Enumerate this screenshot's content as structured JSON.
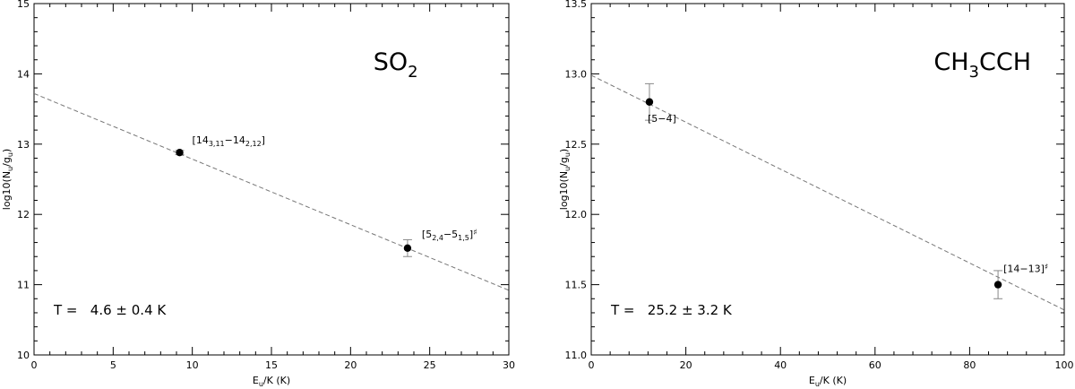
{
  "chart_data": [
    {
      "type": "scatter",
      "species_main": "SO",
      "species_sub": "2",
      "species_tail": "",
      "xlabel_main": "E",
      "xlabel_sub": "u",
      "xlabel_tail": "/K (K)",
      "ylabel_main": "log10(N",
      "ylabel_sub1": "u",
      "ylabel_mid": "/g",
      "ylabel_sub2": "u",
      "ylabel_tail": ")",
      "xlim": [
        0,
        30
      ],
      "ylim": [
        10,
        15
      ],
      "xticks": [
        "0",
        "5",
        "10",
        "15",
        "20",
        "25",
        "30"
      ],
      "yticks": [
        "10",
        "11",
        "12",
        "13",
        "14",
        "15"
      ],
      "fit_line": {
        "x": [
          0,
          30
        ],
        "y": [
          13.72,
          10.92
        ]
      },
      "points": [
        {
          "x": 9.2,
          "y": 12.88,
          "err": 0.03,
          "label_pre": "[14",
          "label_sub1": "3,11",
          "label_mid": "−14",
          "label_sub2": "2,12",
          "label_post": "]"
        },
        {
          "x": 23.6,
          "y": 11.52,
          "err": 0.12,
          "label_pre": "[5",
          "label_sub1": "2,4",
          "label_mid": "−5",
          "label_sub2": "1,5",
          "label_post": "]",
          "label_mark": "♯"
        }
      ],
      "temperature": "T =   4.6 ± 0.4 K"
    },
    {
      "type": "scatter",
      "species_main": "CH",
      "species_sub": "3",
      "species_tail": "CCH",
      "xlabel_main": "E",
      "xlabel_sub": "u",
      "xlabel_tail": "/K (K)",
      "ylabel_main": "log10(N",
      "ylabel_sub1": "u",
      "ylabel_mid": "/g",
      "ylabel_sub2": "u",
      "ylabel_tail": ")",
      "xlim": [
        0,
        100
      ],
      "ylim": [
        11.0,
        13.5
      ],
      "xticks": [
        "0",
        "20",
        "40",
        "60",
        "80",
        "100"
      ],
      "yticks": [
        "11.0",
        "11.5",
        "12.0",
        "12.5",
        "13.0",
        "13.5"
      ],
      "fit_line": {
        "x": [
          0,
          100
        ],
        "y": [
          12.99,
          11.32
        ]
      },
      "points": [
        {
          "x": 12.3,
          "y": 12.8,
          "err": 0.13,
          "label_pre": "[5−4]",
          "label_sub1": "",
          "label_mid": "",
          "label_sub2": "",
          "label_post": ""
        },
        {
          "x": 86.0,
          "y": 11.5,
          "err": 0.1,
          "label_pre": "[14−13]",
          "label_sub1": "",
          "label_mid": "",
          "label_sub2": "",
          "label_post": "",
          "label_mark": "♯"
        }
      ],
      "temperature": "T =   25.2 ± 3.2 K"
    }
  ]
}
